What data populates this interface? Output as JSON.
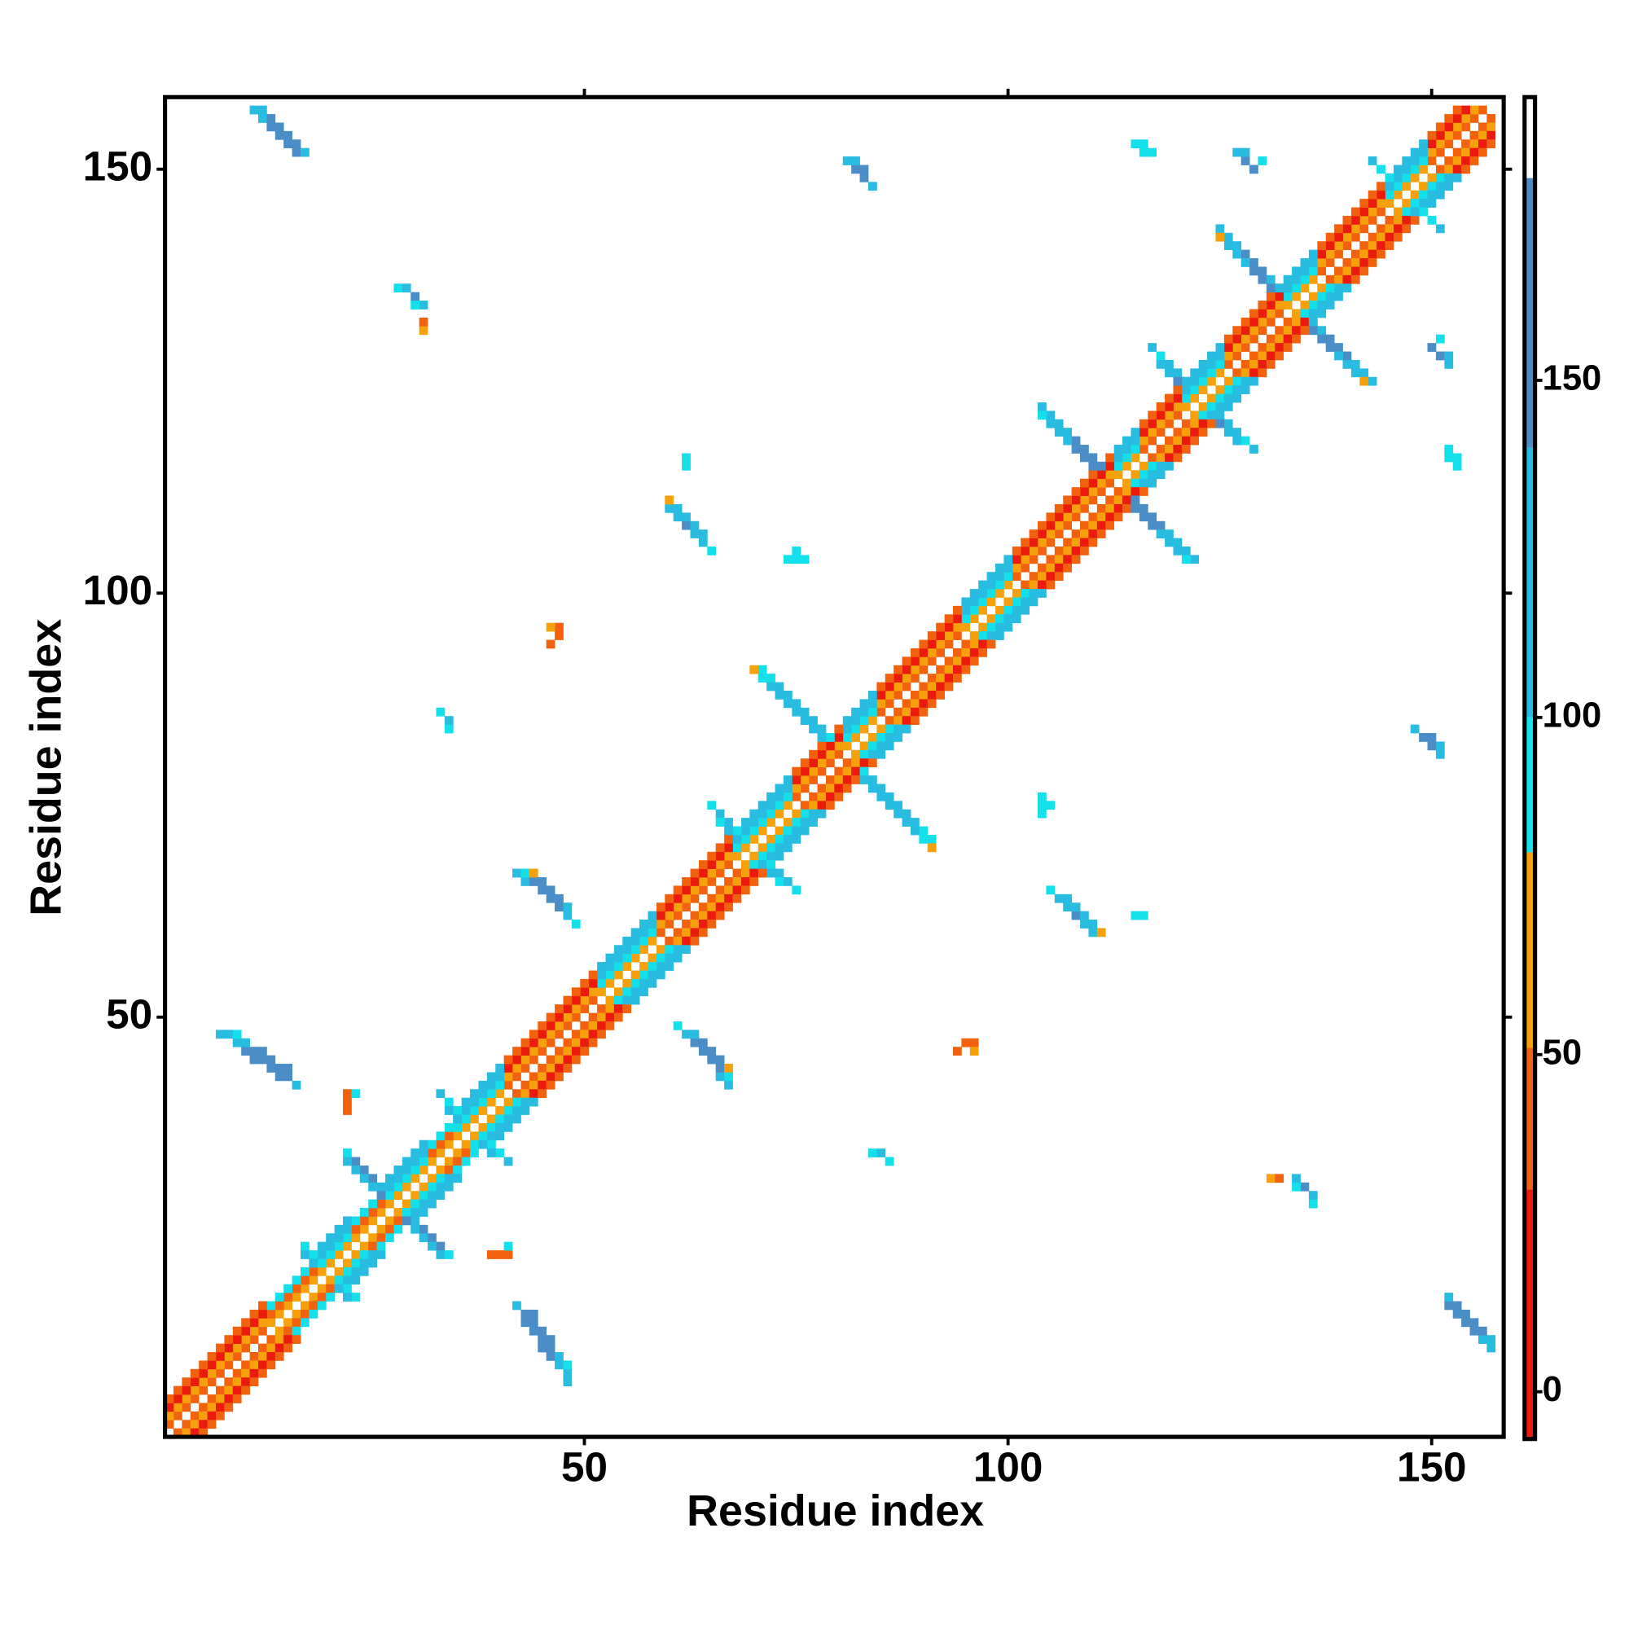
{
  "chart_data": {
    "type": "contact-map",
    "xlabel": "Residue index",
    "ylabel": "Residue index",
    "xlim": [
      0.5,
      158.5
    ],
    "ylim": [
      0.5,
      158.5
    ],
    "xticks": [
      50,
      100,
      150
    ],
    "yticks": [
      50,
      100,
      150
    ],
    "colorbar": {
      "lim": [
        -7,
        192
      ],
      "ticks": [
        0,
        50,
        100,
        150
      ],
      "bins": [
        {
          "from": -7,
          "to": 30,
          "color": "#ea1a0c"
        },
        {
          "from": 30,
          "to": 51,
          "color": "#f2620e"
        },
        {
          "from": 51,
          "to": 80,
          "color": "#f6a00c"
        },
        {
          "from": 80,
          "to": 100,
          "color": "#14e0ec"
        },
        {
          "from": 100,
          "to": 140,
          "color": "#28bde0"
        },
        {
          "from": 140,
          "to": 180,
          "color": "#4b8dc6"
        },
        {
          "from": 180,
          "to": 192,
          "color": "#ffffff"
        }
      ]
    },
    "diagonals": [
      {
        "offset": 1,
        "values": [
          40,
          40,
          40,
          40,
          40,
          40,
          40,
          40,
          40,
          40,
          40,
          40,
          65,
          65,
          65,
          65,
          65,
          65,
          65,
          65,
          65,
          65,
          65,
          65,
          65,
          65,
          65,
          65,
          65,
          65,
          65,
          65,
          65,
          65,
          65,
          65,
          65,
          65,
          65,
          65,
          40,
          40,
          40,
          40,
          40,
          40,
          40,
          40,
          40,
          40,
          40,
          65,
          65,
          65,
          65,
          65,
          65,
          65,
          40,
          40,
          40,
          40,
          40,
          40,
          40,
          40,
          40,
          65,
          65,
          65,
          65,
          65,
          65,
          65,
          40,
          40,
          40,
          40,
          40,
          40,
          65,
          65,
          65,
          65,
          40,
          40,
          40,
          40,
          40,
          40,
          40,
          40,
          40,
          40,
          65,
          65,
          65,
          65,
          65,
          65,
          40,
          40,
          40,
          40,
          40,
          40,
          40,
          40,
          40,
          40,
          40,
          40,
          65,
          65,
          65,
          40,
          40,
          40,
          40,
          40,
          65,
          65,
          65,
          65,
          65,
          40,
          40,
          40,
          40,
          40,
          40,
          40,
          65,
          65,
          65,
          65,
          40,
          40,
          40,
          40,
          40,
          40,
          40,
          40,
          65,
          65,
          65,
          65,
          65,
          40,
          40,
          40,
          40,
          40,
          40,
          40
        ]
      },
      {
        "offset": 2,
        "values": [
          65,
          65,
          65,
          65,
          65,
          65,
          65,
          65,
          65,
          65,
          65,
          65,
          40,
          40,
          40,
          40,
          40,
          40,
          90,
          90,
          90,
          90,
          40,
          40,
          40,
          40,
          90,
          90,
          90,
          90,
          90,
          40,
          40,
          40,
          90,
          90,
          90,
          90,
          90,
          90,
          65,
          65,
          65,
          65,
          65,
          65,
          65,
          65,
          65,
          65,
          65,
          90,
          90,
          90,
          90,
          90,
          90,
          90,
          65,
          65,
          65,
          65,
          65,
          65,
          65,
          65,
          65,
          90,
          90,
          90,
          90,
          90,
          90,
          90,
          65,
          65,
          65,
          65,
          65,
          65,
          90,
          90,
          90,
          90,
          65,
          65,
          65,
          65,
          65,
          65,
          65,
          65,
          65,
          65,
          90,
          90,
          90,
          90,
          90,
          90,
          65,
          65,
          65,
          65,
          65,
          65,
          65,
          65,
          65,
          65,
          65,
          65,
          90,
          90,
          90,
          65,
          65,
          65,
          65,
          65,
          90,
          90,
          90,
          90,
          90,
          65,
          65,
          65,
          65,
          65,
          65,
          65,
          90,
          90,
          90,
          90,
          65,
          65,
          65,
          65,
          65,
          65,
          65,
          65,
          90,
          90,
          90,
          90,
          90,
          65,
          65,
          65,
          65,
          65,
          65
        ]
      },
      {
        "offset": 3,
        "values": [
          15,
          15,
          15,
          15,
          15,
          15,
          15,
          15,
          15,
          15,
          15,
          15,
          90,
          90,
          90,
          90,
          90,
          90,
          125,
          125,
          125,
          125,
          90,
          90,
          90,
          90,
          125,
          125,
          125,
          125,
          125,
          90,
          90,
          90,
          125,
          125,
          125,
          125,
          125,
          125,
          15,
          15,
          15,
          15,
          15,
          15,
          15,
          15,
          15,
          15,
          15,
          125,
          125,
          125,
          125,
          125,
          125,
          125,
          15,
          15,
          15,
          15,
          15,
          15,
          15,
          15,
          15,
          125,
          125,
          125,
          125,
          125,
          125,
          125,
          15,
          15,
          15,
          15,
          15,
          15,
          125,
          125,
          125,
          125,
          15,
          15,
          15,
          15,
          15,
          15,
          15,
          15,
          15,
          15,
          125,
          125,
          125,
          125,
          125,
          125,
          15,
          15,
          15,
          15,
          15,
          15,
          15,
          15,
          15,
          15,
          15,
          15,
          125,
          125,
          125,
          15,
          15,
          15,
          15,
          15,
          125,
          125,
          125,
          125,
          125,
          15,
          15,
          15,
          15,
          15,
          15,
          15,
          125,
          125,
          125,
          125,
          15,
          15,
          15,
          15,
          15,
          15,
          15,
          15,
          125,
          125,
          125,
          125,
          125,
          15,
          15,
          15,
          15,
          15
        ]
      },
      {
        "offset": 4,
        "values": [
          40,
          40,
          40,
          40,
          40,
          40,
          40,
          40,
          40,
          40,
          40,
          40,
          null,
          null,
          null,
          null,
          null,
          null,
          125,
          125,
          125,
          125,
          null,
          null,
          null,
          null,
          125,
          125,
          125,
          125,
          125,
          null,
          null,
          null,
          125,
          125,
          125,
          125,
          125,
          125,
          40,
          40,
          40,
          40,
          40,
          40,
          40,
          40,
          40,
          40,
          40,
          125,
          125,
          125,
          125,
          125,
          125,
          125,
          40,
          40,
          40,
          40,
          40,
          40,
          40,
          40,
          40,
          125,
          125,
          125,
          125,
          125,
          125,
          125,
          40,
          40,
          40,
          40,
          40,
          40,
          125,
          125,
          125,
          125,
          40,
          40,
          40,
          40,
          40,
          40,
          40,
          40,
          40,
          40,
          125,
          125,
          125,
          125,
          125,
          125,
          40,
          40,
          40,
          40,
          40,
          40,
          40,
          40,
          40,
          40,
          40,
          40,
          125,
          125,
          125,
          40,
          40,
          40,
          40,
          40,
          125,
          125,
          125,
          125,
          125,
          40,
          40,
          40,
          40,
          40,
          40,
          40,
          125,
          125,
          125,
          125,
          40,
          40,
          40,
          40,
          40,
          40,
          40,
          40,
          125,
          125,
          125,
          125,
          125,
          40,
          40,
          40,
          40
        ]
      }
    ],
    "cells": [
      [
        18,
        22,
        90
      ],
      [
        17,
        23,
        90
      ],
      [
        18,
        21,
        125
      ],
      [
        17,
        22,
        125
      ],
      [
        26,
        30,
        125
      ],
      [
        26,
        29,
        165
      ],
      [
        25,
        31,
        165
      ],
      [
        25,
        30,
        125
      ],
      [
        24,
        32,
        165
      ],
      [
        24,
        31,
        125
      ],
      [
        23,
        33,
        165
      ],
      [
        23,
        32,
        125
      ],
      [
        22,
        34,
        90
      ],
      [
        22,
        33,
        125
      ],
      [
        35,
        39,
        90
      ],
      [
        34,
        40,
        90
      ],
      [
        33,
        41,
        125
      ],
      [
        35,
        38,
        125
      ],
      [
        34,
        39,
        125
      ],
      [
        68,
        72,
        90
      ],
      [
        67,
        73,
        125
      ],
      [
        66,
        74,
        125
      ],
      [
        65,
        75,
        90
      ],
      [
        67,
        72,
        125
      ],
      [
        66,
        73,
        90
      ],
      [
        79,
        83,
        90
      ],
      [
        78,
        84,
        125
      ],
      [
        77,
        85,
        125
      ],
      [
        76,
        86,
        125
      ],
      [
        75,
        87,
        125
      ],
      [
        74,
        88,
        125
      ],
      [
        73,
        89,
        125
      ],
      [
        72,
        90,
        90
      ],
      [
        71,
        91,
        90
      ],
      [
        78,
        83,
        125
      ],
      [
        77,
        84,
        125
      ],
      [
        76,
        85,
        125
      ],
      [
        75,
        86,
        125
      ],
      [
        74,
        87,
        125
      ],
      [
        73,
        88,
        125
      ],
      [
        72,
        89,
        125
      ],
      [
        71,
        90,
        90
      ],
      [
        70,
        91,
        65
      ],
      [
        111,
        115,
        165
      ],
      [
        110,
        116,
        165
      ],
      [
        109,
        117,
        165
      ],
      [
        108,
        118,
        165
      ],
      [
        107,
        119,
        125
      ],
      [
        106,
        120,
        125
      ],
      [
        105,
        121,
        125
      ],
      [
        104,
        122,
        125
      ],
      [
        110,
        115,
        165
      ],
      [
        109,
        116,
        165
      ],
      [
        108,
        117,
        165
      ],
      [
        107,
        118,
        125
      ],
      [
        106,
        119,
        125
      ],
      [
        105,
        120,
        125
      ],
      [
        104,
        121,
        90
      ],
      [
        121,
        125,
        125
      ],
      [
        120,
        126,
        125
      ],
      [
        119,
        127,
        125
      ],
      [
        118,
        128,
        90
      ],
      [
        117,
        129,
        125
      ],
      [
        120,
        125,
        165
      ],
      [
        119,
        126,
        125
      ],
      [
        118,
        127,
        125
      ],
      [
        132,
        136,
        125
      ],
      [
        131,
        137,
        125
      ],
      [
        130,
        138,
        165
      ],
      [
        129,
        139,
        165
      ],
      [
        128,
        140,
        165
      ],
      [
        127,
        141,
        125
      ],
      [
        126,
        142,
        125
      ],
      [
        125,
        143,
        125
      ],
      [
        131,
        136,
        165
      ],
      [
        130,
        137,
        165
      ],
      [
        129,
        138,
        165
      ],
      [
        128,
        139,
        125
      ],
      [
        127,
        140,
        125
      ],
      [
        126,
        141,
        125
      ],
      [
        125,
        142,
        65
      ],
      [
        145,
        149,
        90
      ],
      [
        144,
        150,
        90
      ],
      [
        143,
        151,
        125
      ],
      [
        145,
        148,
        125
      ],
      [
        11,
        157,
        125
      ],
      [
        12,
        156,
        125
      ],
      [
        13,
        155,
        165
      ],
      [
        14,
        154,
        165
      ],
      [
        15,
        153,
        165
      ],
      [
        16,
        152,
        165
      ],
      [
        12,
        157,
        125
      ],
      [
        13,
        156,
        165
      ],
      [
        14,
        155,
        165
      ],
      [
        15,
        154,
        165
      ],
      [
        16,
        153,
        165
      ],
      [
        17,
        152,
        125
      ],
      [
        7,
        48,
        125
      ],
      [
        8,
        48,
        125
      ],
      [
        9,
        47,
        125
      ],
      [
        10,
        46,
        165
      ],
      [
        11,
        45,
        165
      ],
      [
        12,
        45,
        165
      ],
      [
        13,
        44,
        165
      ],
      [
        14,
        43,
        165
      ],
      [
        15,
        43,
        165
      ],
      [
        16,
        42,
        125
      ],
      [
        9,
        48,
        90
      ],
      [
        10,
        47,
        125
      ],
      [
        11,
        46,
        165
      ],
      [
        12,
        46,
        165
      ],
      [
        13,
        45,
        165
      ],
      [
        14,
        44,
        165
      ],
      [
        15,
        44,
        165
      ],
      [
        42,
        67,
        125
      ],
      [
        43,
        66,
        125
      ],
      [
        44,
        66,
        165
      ],
      [
        45,
        65,
        165
      ],
      [
        46,
        64,
        165
      ],
      [
        47,
        63,
        165
      ],
      [
        48,
        62,
        125
      ],
      [
        49,
        61,
        90
      ],
      [
        43,
        67,
        90
      ],
      [
        44,
        67,
        65
      ],
      [
        45,
        66,
        165
      ],
      [
        46,
        65,
        165
      ],
      [
        47,
        64,
        165
      ],
      [
        48,
        63,
        125
      ],
      [
        60,
        110,
        125
      ],
      [
        61,
        109,
        125
      ],
      [
        62,
        108,
        165
      ],
      [
        63,
        107,
        125
      ],
      [
        64,
        106,
        125
      ],
      [
        65,
        105,
        90
      ],
      [
        61,
        110,
        125
      ],
      [
        62,
        109,
        125
      ],
      [
        63,
        108,
        125
      ],
      [
        64,
        107,
        125
      ],
      [
        60,
        111,
        65
      ],
      [
        81,
        151,
        125
      ],
      [
        82,
        150,
        165
      ],
      [
        83,
        149,
        165
      ],
      [
        84,
        148,
        125
      ],
      [
        82,
        151,
        125
      ],
      [
        83,
        150,
        165
      ],
      [
        28,
        136,
        90
      ],
      [
        29,
        136,
        125
      ],
      [
        30,
        135,
        165
      ],
      [
        31,
        134,
        125
      ],
      [
        30,
        134,
        90
      ],
      [
        31,
        131,
        65
      ],
      [
        31,
        132,
        40
      ],
      [
        127,
        152,
        125
      ],
      [
        128,
        151,
        165
      ],
      [
        129,
        150,
        165
      ],
      [
        128,
        152,
        125
      ],
      [
        130,
        151,
        90
      ],
      [
        115,
        153,
        90
      ],
      [
        116,
        152,
        90
      ],
      [
        116,
        153,
        90
      ],
      [
        117,
        152,
        90
      ],
      [
        46,
        94,
        40
      ],
      [
        47,
        95,
        40
      ],
      [
        47,
        96,
        40
      ],
      [
        46,
        96,
        65
      ],
      [
        33,
        86,
        90
      ],
      [
        34,
        85,
        125
      ],
      [
        34,
        84,
        90
      ],
      [
        74,
        104,
        90
      ],
      [
        75,
        104,
        90
      ],
      [
        75,
        105,
        90
      ],
      [
        76,
        104,
        90
      ],
      [
        62,
        116,
        90
      ],
      [
        62,
        115,
        90
      ],
      [
        22,
        39,
        40
      ],
      [
        22,
        40,
        40
      ],
      [
        22,
        41,
        40
      ],
      [
        23,
        41,
        90
      ]
    ]
  }
}
